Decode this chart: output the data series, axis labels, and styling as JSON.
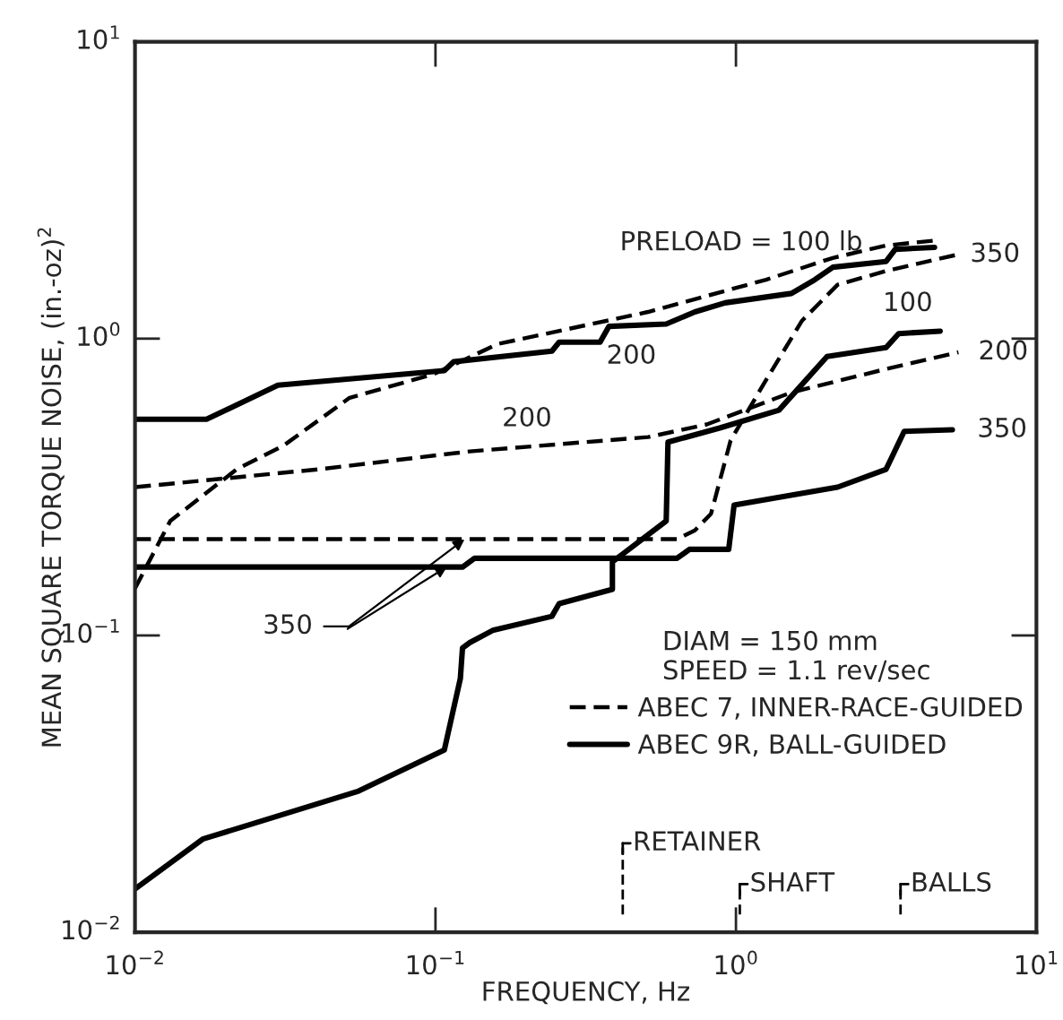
{
  "chart_data": {
    "type": "line",
    "xlabel": "FREQUENCY, Hz",
    "ylabel": "MEAN SQUARE TORQUE NOISE, (in.-oz)$^{2}$",
    "log": "xy",
    "grid": false,
    "legend": "bottom right",
    "legend_title": "DIAM = 150 mm\nSPEED = 1.1 rev/sec",
    "xlim": [
      0.01,
      10
    ],
    "ylim": [
      0.01,
      10
    ],
    "xticks": [
      {
        "value": 0.01,
        "label": "10$^{−2}$"
      },
      {
        "value": 0.1,
        "label": "10$^{−1}$"
      },
      {
        "value": 1,
        "label": "10$^{0}$"
      },
      {
        "value": 10,
        "label": "10$^{1}$"
      }
    ],
    "yticks": [
      {
        "value": 0.01,
        "label": "10$^{−2}$"
      },
      {
        "value": 0.1,
        "label": "10$^{−1}$"
      },
      {
        "value": 1,
        "label": "10$^{0}$"
      },
      {
        "value": 10,
        "label": "10$^{1}$"
      }
    ],
    "series": [
      {
        "name": "ABEC 7, INNER-RACE-GUIDED",
        "color": "#000000",
        "line_style": "dashed",
        "x": [
          0.01,
          0.0131,
          0.0218,
          0.0312,
          0.0518,
          0.0986,
          0.161,
          0.51,
          1.26,
          2.1,
          3.16,
          4.58
        ],
        "values": [
          0.144,
          0.243,
          0.363,
          0.436,
          0.632,
          0.759,
          0.959,
          1.23,
          1.58,
          1.87,
          2.06,
          2.14
        ]
      },
      {
        "color": "#000000",
        "line_style": "dashed",
        "x": [
          0.01,
          0.041,
          0.13,
          0.51,
          0.8,
          1.53,
          3.16,
          5.5
        ],
        "values": [
          0.316,
          0.363,
          0.417,
          0.466,
          0.514,
          0.659,
          0.79,
          0.9
        ]
      },
      {
        "color": "#000000",
        "line_style": "dashed",
        "x": [
          0.01,
          0.637,
          0.73,
          0.826,
          0.96,
          1.26,
          1.66,
          2.18,
          3.16,
          5.47
        ],
        "values": [
          0.211,
          0.211,
          0.226,
          0.257,
          0.454,
          0.726,
          1.15,
          1.52,
          1.69,
          1.92
        ]
      },
      {
        "name": "ABEC 9R, BALL-GUIDED",
        "color": "#000000",
        "line_style": "solid",
        "x": [
          0.01,
          0.0168,
          0.0555,
          0.107,
          0.121,
          0.123,
          0.13,
          0.155,
          0.244,
          0.258,
          0.388,
          0.388,
          0.586,
          0.594,
          0.883,
          1.39,
          2.01,
          3.16,
          3.48,
          4.78
        ],
        "values": [
          0.014,
          0.0206,
          0.0299,
          0.0411,
          0.0716,
          0.0907,
          0.0946,
          0.104,
          0.116,
          0.128,
          0.143,
          0.177,
          0.243,
          0.448,
          0.5,
          0.574,
          0.871,
          0.933,
          1.04,
          1.06
        ]
      },
      {
        "color": "#000000",
        "line_style": "solid",
        "x": [
          0.01,
          0.0173,
          0.0299,
          0.107,
          0.115,
          0.244,
          0.258,
          0.353,
          0.378,
          0.586,
          0.73,
          0.92,
          1.53,
          1.83,
          2.1,
          3.16,
          3.39,
          4.58
        ],
        "values": [
          0.535,
          0.535,
          0.697,
          0.78,
          0.836,
          0.908,
          0.973,
          0.973,
          1.1,
          1.12,
          1.23,
          1.32,
          1.42,
          1.58,
          1.74,
          1.82,
          2.0,
          2.03
        ]
      },
      {
        "color": "#000000",
        "line_style": "solid",
        "x": [
          0.01,
          0.123,
          0.135,
          0.637,
          0.7,
          0.946,
          0.986,
          2.18,
          3.16,
          3.63,
          5.25
        ],
        "values": [
          0.17,
          0.17,
          0.182,
          0.182,
          0.195,
          0.195,
          0.275,
          0.316,
          0.363,
          0.487,
          0.493
        ]
      }
    ],
    "annotations": [
      {
        "text": "PRELOAD = 100 lb",
        "x": 2.1,
        "y": 1.87
      },
      {
        "text": "350",
        "x": 5.47,
        "y": 1.92
      },
      {
        "text": "100",
        "x": 4.78,
        "y": 1.06
      },
      {
        "text": "200",
        "x": 5.5,
        "y": 0.9
      },
      {
        "text": "200",
        "x": 0.586,
        "y": 1.12
      },
      {
        "text": "200",
        "x": 0.13,
        "y": 0.417
      },
      {
        "text": "350",
        "x": 5.25,
        "y": 0.493
      },
      {
        "text": "350",
        "x": 0.125,
        "y": 0.211
      }
    ],
    "ref_lines": [
      {
        "axis": "x",
        "value": 0.42,
        "label": "RETAINER",
        "line_style": "dashed"
      },
      {
        "axis": "x",
        "value": 1.03,
        "label": "SHAFT",
        "line_style": "dashed"
      },
      {
        "axis": "x",
        "value": 3.53,
        "label": "BALLS",
        "line_style": "dashed"
      }
    ]
  }
}
